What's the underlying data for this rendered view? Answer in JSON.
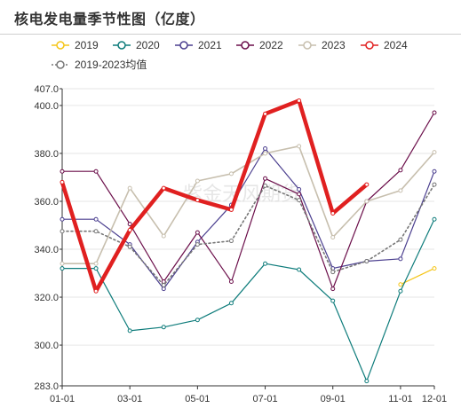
{
  "chart_data": {
    "type": "line",
    "title": "核电发电量季节性图（亿度）",
    "watermark": "紫金天风期货",
    "x": [
      "01-01",
      "02-01",
      "03-01",
      "04-01",
      "05-01",
      "06-01",
      "07-01",
      "08-01",
      "09-01",
      "10-01",
      "11-01",
      "12-01"
    ],
    "x_tick_labels": [
      "01-01",
      "03-01",
      "05-01",
      "07-01",
      "09-01",
      "11-01",
      "12-01"
    ],
    "ylim": [
      283.0,
      407.0
    ],
    "y_tick_labels": [
      "283.0",
      "300.0",
      "320.0",
      "340.0",
      "360.0",
      "380.0",
      "400.0",
      "407.0"
    ],
    "xlabel": "",
    "ylabel": "",
    "grid": "horizontal",
    "legend_position": "top-left",
    "series": [
      {
        "name": "2019",
        "color": "#f5c518",
        "width": 1.2,
        "dashed": false,
        "values": [
          null,
          null,
          null,
          null,
          null,
          null,
          null,
          null,
          null,
          null,
          325.3,
          332.0
        ]
      },
      {
        "name": "2020",
        "color": "#0e7c7b",
        "width": 1.2,
        "dashed": false,
        "values": [
          332.0,
          332.0,
          306.0,
          307.5,
          310.5,
          317.5,
          334.0,
          331.5,
          318.5,
          285.0,
          322.5,
          352.5
        ]
      },
      {
        "name": "2021",
        "color": "#4b3f8f",
        "width": 1.2,
        "dashed": false,
        "values": [
          352.5,
          352.5,
          342.0,
          323.5,
          343.0,
          358.5,
          382.0,
          365.0,
          332.0,
          335.0,
          336.0,
          372.5
        ]
      },
      {
        "name": "2022",
        "color": "#6b0e4a",
        "width": 1.2,
        "dashed": false,
        "values": [
          372.5,
          372.5,
          350.5,
          326.5,
          347.0,
          326.5,
          369.5,
          363.0,
          323.5,
          360.0,
          373.0,
          397.0
        ]
      },
      {
        "name": "2023",
        "color": "#c7bfae",
        "width": 1.6,
        "dashed": false,
        "values": [
          334.0,
          334.0,
          365.5,
          345.5,
          368.5,
          371.5,
          380.0,
          383.0,
          345.0,
          360.0,
          364.5,
          380.5
        ]
      },
      {
        "name": "2024",
        "color": "#e02020",
        "width": 4.5,
        "dashed": false,
        "values": [
          368.0,
          322.5,
          348.0,
          365.5,
          360.5,
          356.5,
          396.5,
          402.0,
          355.0,
          367.0,
          null,
          null
        ]
      },
      {
        "name": "2019-2023均值",
        "color": "#777777",
        "width": 1.6,
        "dashed": true,
        "values": [
          347.5,
          347.5,
          341.0,
          325.0,
          342.0,
          343.5,
          366.5,
          360.5,
          330.5,
          335.0,
          344.0,
          367.0
        ]
      }
    ]
  }
}
